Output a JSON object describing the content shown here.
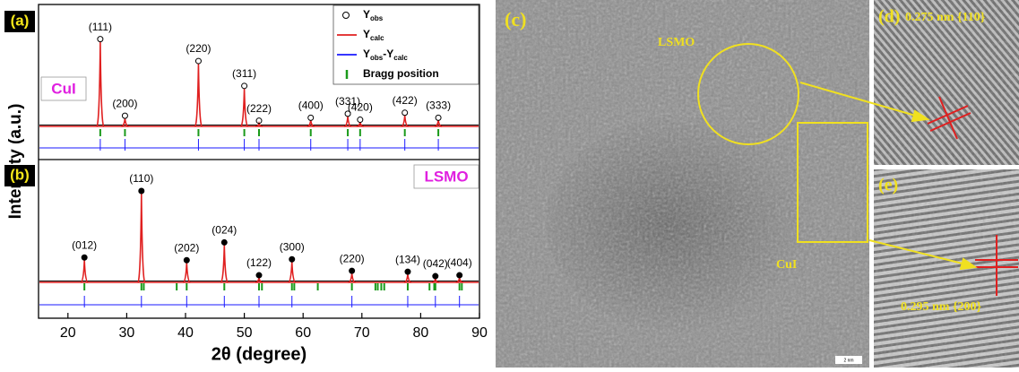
{
  "chart_data": [
    {
      "type": "xrd",
      "panel": "(a)",
      "phase": "CuI",
      "xlim": [
        15,
        90
      ],
      "ylim": [
        0,
        100
      ],
      "marker": "open",
      "peaks": {
        "x": [
          25.5,
          29.7,
          42.2,
          50.0,
          52.5,
          61.3,
          67.6,
          69.7,
          77.3,
          83.0
        ],
        "values": [
          85,
          8,
          63,
          38,
          3,
          6,
          10,
          4,
          11,
          6
        ],
        "labels": [
          "(111)",
          "(200)",
          "(220)",
          "(311)",
          "(222)",
          "(400)",
          "(331)",
          "(420)",
          "(422)",
          "(333)"
        ]
      },
      "bragg": [
        25.5,
        29.7,
        42.2,
        50.0,
        52.5,
        61.3,
        67.6,
        69.7,
        77.3,
        83.0
      ],
      "colors": {
        "obs": "#000000",
        "calc": "#e02020",
        "diff": "#1a1aff",
        "bragg": "#1a9a1a"
      },
      "legend": [
        {
          "parts": [
            "Y",
            "obs"
          ],
          "style": "circle",
          "color": "#000000"
        },
        {
          "parts": [
            "Y",
            "calc"
          ],
          "style": "line",
          "color": "#e02020"
        },
        {
          "parts": [
            "Y",
            "obs",
            "-Y",
            "calc"
          ],
          "style": "line",
          "color": "#1a1aff"
        },
        {
          "parts": [
            "Bragg position"
          ],
          "style": "tick",
          "color": "#1a9a1a"
        }
      ],
      "ylabel": "Intensity (a.u.)"
    },
    {
      "type": "xrd",
      "panel": "(b)",
      "phase": "LSMO",
      "xlim": [
        15,
        90
      ],
      "ylim": [
        0,
        100
      ],
      "marker": "filled",
      "peaks": {
        "x": [
          22.8,
          32.5,
          40.2,
          46.6,
          52.5,
          58.1,
          68.3,
          77.8,
          82.5,
          86.6
        ],
        "values": [
          25,
          100,
          22,
          42,
          5,
          23,
          10,
          9,
          4,
          5
        ],
        "labels": [
          "(012)",
          "(110)",
          "(202)",
          "(024)",
          "(122)",
          "(300)",
          "(220)",
          "(134)",
          "(042)",
          "(404)"
        ]
      },
      "bragg": [
        22.8,
        32.5,
        32.9,
        38.5,
        40.2,
        46.6,
        52.5,
        53.0,
        58.1,
        58.5,
        62.5,
        68.3,
        72.3,
        72.7,
        73.3,
        73.8,
        77.8,
        81.5,
        82.3,
        82.5,
        86.6,
        87.0
      ],
      "colors": {
        "obs": "#000000",
        "calc": "#e02020",
        "diff": "#1a1aff",
        "bragg": "#1a9a1a"
      },
      "xticks": [
        20,
        30,
        40,
        50,
        60,
        70,
        80,
        90
      ],
      "xlabel": "2θ (degree)"
    }
  ],
  "tem": {
    "c": {
      "tag": "(c)",
      "lsmo": "LSMO",
      "cui": "CuI",
      "scale": "2 nm"
    },
    "d": {
      "tag": "(d)",
      "spacing": "0.275 nm {110}"
    },
    "e": {
      "tag": "(e)",
      "spacing": "0.295 nm {200}"
    }
  }
}
